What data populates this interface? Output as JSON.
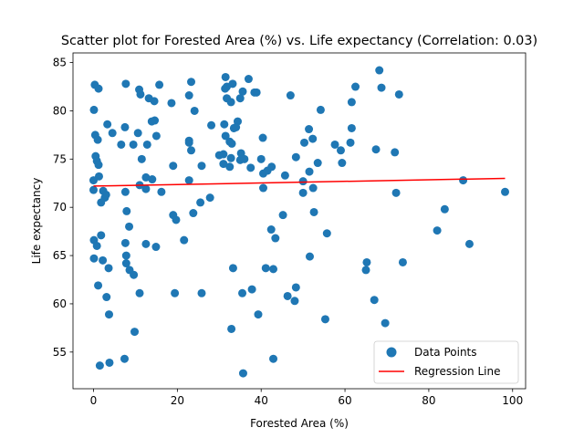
{
  "chart_data": {
    "type": "scatter",
    "title": "Scatter plot for Forested Area (%) vs. Life expectancy (Correlation: 0.03)",
    "xlabel": "Forested Area (%)",
    "ylabel": "Life expectancy",
    "xlim": [
      -4.9,
      103.1
    ],
    "ylim": [
      51.2,
      86.0
    ],
    "xticks": [
      0,
      20,
      40,
      60,
      80,
      100
    ],
    "yticks": [
      55,
      60,
      65,
      70,
      75,
      80,
      85
    ],
    "grid": false,
    "legend_position": "lower-right",
    "legend": [
      "Data Points",
      "Regression Line"
    ],
    "colors": {
      "points": "#1f77b4",
      "regression": "#ff0000"
    },
    "points": [
      [
        0.1,
        80.1
      ],
      [
        0.3,
        82.7
      ],
      [
        1.2,
        82.3
      ],
      [
        0.4,
        77.5
      ],
      [
        1.0,
        77.0
      ],
      [
        0.5,
        75.3
      ],
      [
        0.8,
        74.8
      ],
      [
        1.2,
        74.4
      ],
      [
        1.3,
        73.2
      ],
      [
        0.0,
        72.8
      ],
      [
        0.0,
        71.8
      ],
      [
        2.3,
        71.7
      ],
      [
        2.7,
        71.0
      ],
      [
        3.0,
        71.3
      ],
      [
        1.8,
        70.5
      ],
      [
        3.3,
        78.6
      ],
      [
        4.5,
        77.7
      ],
      [
        6.6,
        76.5
      ],
      [
        0.1,
        66.6
      ],
      [
        0.8,
        66.0
      ],
      [
        1.8,
        67.1
      ],
      [
        0.1,
        64.7
      ],
      [
        2.2,
        64.5
      ],
      [
        3.6,
        63.7
      ],
      [
        1.1,
        61.9
      ],
      [
        3.1,
        60.7
      ],
      [
        3.7,
        58.9
      ],
      [
        1.5,
        53.6
      ],
      [
        3.8,
        53.9
      ],
      [
        7.4,
        54.3
      ],
      [
        7.7,
        82.8
      ],
      [
        10.9,
        82.2
      ],
      [
        11.2,
        81.7
      ],
      [
        13.2,
        81.3
      ],
      [
        14.5,
        81.0
      ],
      [
        15.7,
        82.7
      ],
      [
        18.6,
        80.8
      ],
      [
        22.8,
        81.6
      ],
      [
        23.3,
        83.0
      ],
      [
        24.1,
        80.0
      ],
      [
        7.5,
        78.3
      ],
      [
        10.6,
        77.7
      ],
      [
        12.8,
        76.5
      ],
      [
        14.6,
        79.0
      ],
      [
        13.9,
        78.9
      ],
      [
        15.0,
        77.4
      ],
      [
        9.5,
        76.5
      ],
      [
        11.5,
        75.0
      ],
      [
        12.5,
        73.1
      ],
      [
        14.0,
        72.9
      ],
      [
        11.0,
        72.3
      ],
      [
        12.5,
        71.9
      ],
      [
        16.2,
        71.6
      ],
      [
        19.0,
        74.3
      ],
      [
        22.8,
        76.9
      ],
      [
        22.8,
        76.7
      ],
      [
        23.3,
        75.9
      ],
      [
        25.8,
        74.3
      ],
      [
        22.8,
        72.8
      ],
      [
        7.6,
        71.6
      ],
      [
        7.9,
        69.6
      ],
      [
        8.5,
        68.0
      ],
      [
        19.0,
        69.2
      ],
      [
        19.7,
        68.7
      ],
      [
        23.8,
        69.4
      ],
      [
        25.5,
        70.5
      ],
      [
        27.8,
        71.0
      ],
      [
        21.6,
        66.6
      ],
      [
        12.5,
        66.2
      ],
      [
        14.9,
        65.9
      ],
      [
        7.6,
        66.3
      ],
      [
        7.8,
        65.0
      ],
      [
        7.8,
        64.2
      ],
      [
        8.6,
        63.5
      ],
      [
        9.6,
        63.0
      ],
      [
        11.0,
        61.1
      ],
      [
        19.4,
        61.1
      ],
      [
        25.8,
        61.1
      ],
      [
        9.8,
        57.1
      ],
      [
        28.1,
        78.5
      ],
      [
        31.5,
        83.5
      ],
      [
        31.8,
        82.5
      ],
      [
        33.2,
        82.8
      ],
      [
        35.6,
        82.0
      ],
      [
        37.0,
        83.3
      ],
      [
        38.9,
        81.9
      ],
      [
        38.4,
        81.9
      ],
      [
        31.4,
        82.3
      ],
      [
        31.8,
        81.3
      ],
      [
        32.8,
        80.9
      ],
      [
        35.0,
        81.3
      ],
      [
        31.2,
        78.6
      ],
      [
        33.5,
        78.2
      ],
      [
        34.4,
        78.9
      ],
      [
        34.0,
        78.3
      ],
      [
        31.5,
        77.4
      ],
      [
        32.5,
        76.8
      ],
      [
        33.0,
        76.6
      ],
      [
        35.2,
        75.6
      ],
      [
        30.0,
        75.4
      ],
      [
        31.0,
        75.5
      ],
      [
        32.8,
        75.1
      ],
      [
        35.0,
        74.9
      ],
      [
        36.0,
        75.0
      ],
      [
        31.0,
        74.5
      ],
      [
        32.5,
        74.2
      ],
      [
        37.5,
        74.1
      ],
      [
        40.0,
        75.0
      ],
      [
        40.4,
        77.2
      ],
      [
        40.5,
        73.5
      ],
      [
        41.5,
        73.8
      ],
      [
        42.5,
        74.2
      ],
      [
        40.5,
        72.0
      ],
      [
        45.7,
        73.3
      ],
      [
        47.0,
        81.6
      ],
      [
        48.3,
        75.2
      ],
      [
        50.3,
        76.7
      ],
      [
        51.4,
        78.1
      ],
      [
        52.3,
        77.1
      ],
      [
        54.2,
        80.1
      ],
      [
        51.5,
        73.7
      ],
      [
        53.5,
        74.6
      ],
      [
        50.0,
        72.7
      ],
      [
        50.0,
        71.5
      ],
      [
        52.4,
        72.0
      ],
      [
        57.6,
        76.5
      ],
      [
        59.0,
        75.9
      ],
      [
        59.3,
        74.6
      ],
      [
        61.3,
        76.7
      ],
      [
        61.6,
        78.2
      ],
      [
        61.6,
        80.9
      ],
      [
        62.5,
        82.5
      ],
      [
        68.2,
        84.2
      ],
      [
        68.7,
        82.4
      ],
      [
        72.9,
        81.7
      ],
      [
        67.4,
        76.0
      ],
      [
        71.9,
        75.7
      ],
      [
        72.2,
        71.5
      ],
      [
        42.4,
        67.7
      ],
      [
        43.4,
        66.8
      ],
      [
        45.2,
        69.2
      ],
      [
        52.6,
        69.5
      ],
      [
        55.7,
        67.3
      ],
      [
        51.6,
        64.9
      ],
      [
        41.1,
        63.7
      ],
      [
        42.9,
        63.6
      ],
      [
        33.3,
        63.7
      ],
      [
        35.5,
        61.1
      ],
      [
        37.8,
        61.5
      ],
      [
        46.3,
        60.8
      ],
      [
        48.3,
        61.7
      ],
      [
        48.0,
        60.3
      ],
      [
        39.3,
        58.9
      ],
      [
        32.9,
        57.4
      ],
      [
        55.3,
        58.4
      ],
      [
        35.7,
        52.8
      ],
      [
        42.9,
        54.3
      ],
      [
        65.2,
        64.3
      ],
      [
        65.0,
        63.5
      ],
      [
        67.0,
        60.4
      ],
      [
        69.6,
        58.0
      ],
      [
        73.8,
        64.3
      ],
      [
        82.0,
        67.6
      ],
      [
        83.8,
        69.8
      ],
      [
        88.2,
        72.8
      ],
      [
        89.7,
        66.2
      ],
      [
        98.2,
        71.6
      ]
    ],
    "regression_line": {
      "x": [
        0,
        98.2
      ],
      "y": [
        72.2,
        73.0
      ]
    }
  }
}
